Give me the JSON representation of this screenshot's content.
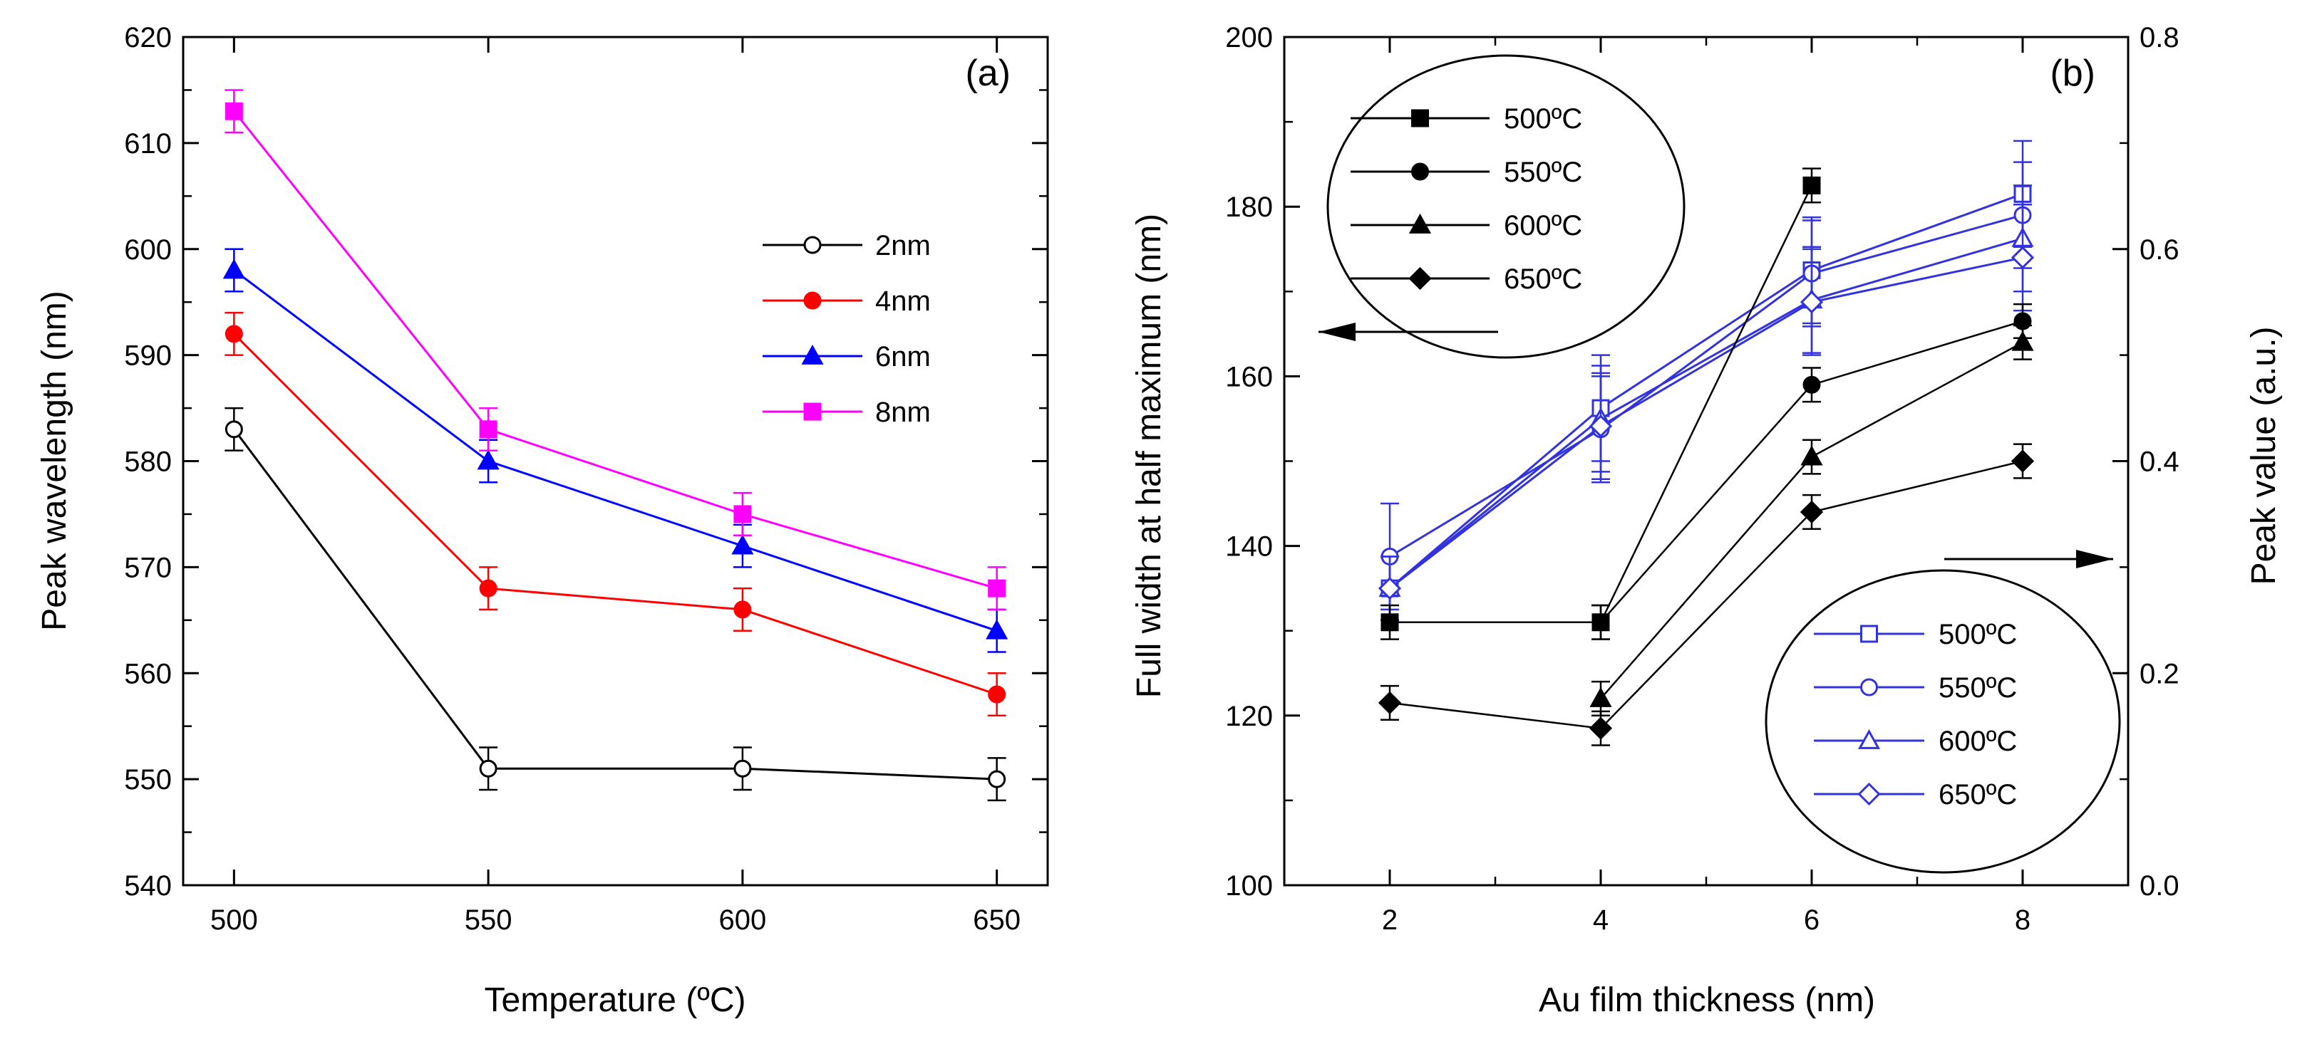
{
  "chart_data": [
    {
      "type": "line",
      "panel_label": "(a)",
      "xlabel": "Temperature (ºC)",
      "ylabel": "Peak wavelength (nm)",
      "xlim": [
        490,
        660
      ],
      "ylim": [
        540,
        620
      ],
      "x_ticks": [
        500,
        550,
        600,
        650
      ],
      "y_ticks": [
        540,
        550,
        560,
        570,
        580,
        590,
        600,
        610,
        620
      ],
      "legend_position": "right",
      "grid": false,
      "series": [
        {
          "name": "2nm",
          "color": "#000000",
          "marker": "circle-open",
          "x": [
            500,
            550,
            600,
            650
          ],
          "values": [
            583,
            551,
            551,
            550
          ],
          "errors": [
            2,
            2,
            2,
            2
          ]
        },
        {
          "name": "4nm",
          "color": "#ff0000",
          "marker": "circle-filled",
          "x": [
            500,
            550,
            600,
            650
          ],
          "values": [
            592,
            568,
            566,
            558
          ],
          "errors": [
            2,
            2,
            2,
            2
          ]
        },
        {
          "name": "6nm",
          "color": "#0000ff",
          "marker": "triangle-filled",
          "x": [
            500,
            550,
            600,
            650
          ],
          "values": [
            598,
            580,
            572,
            564
          ],
          "errors": [
            2,
            2,
            2,
            2
          ]
        },
        {
          "name": "8nm",
          "color": "#ff00ff",
          "marker": "square-filled",
          "x": [
            500,
            550,
            600,
            650
          ],
          "values": [
            613,
            583,
            575,
            568
          ],
          "errors": [
            2,
            2,
            2,
            2
          ]
        }
      ]
    },
    {
      "type": "line",
      "panel_label": "(b)",
      "xlabel": "Au film thickness (nm)",
      "ylabel": "Full width at half maximum (nm)",
      "y2label": "Peak value (a.u.)",
      "xlim": [
        1,
        9
      ],
      "ylim": [
        100,
        200
      ],
      "y2lim": [
        0.0,
        0.8
      ],
      "x_ticks": [
        2,
        4,
        6,
        8
      ],
      "y_ticks": [
        100,
        120,
        140,
        160,
        180,
        200
      ],
      "y2_ticks": [
        "0.0",
        "0.2",
        "0.4",
        "0.6",
        "0.8"
      ],
      "grid": false,
      "fwhm_legend_position": "top-left",
      "peak_legend_position": "bottom-right",
      "fwhm_series": [
        {
          "name": "500ºC",
          "color": "#000000",
          "marker": "square-filled",
          "x": [
            2,
            4,
            6
          ],
          "values": [
            131,
            131,
            182.5
          ],
          "errors": [
            2,
            2,
            2
          ]
        },
        {
          "name": "550ºC",
          "color": "#000000",
          "marker": "circle-filled",
          "x": [
            4,
            6,
            8
          ],
          "values": [
            131,
            159,
            166.5
          ],
          "errors": [
            2,
            2,
            2
          ]
        },
        {
          "name": "600ºC",
          "color": "#000000",
          "marker": "triangle-filled",
          "x": [
            4,
            6,
            8
          ],
          "values": [
            122,
            150.5,
            164
          ],
          "errors": [
            2,
            2,
            2
          ]
        },
        {
          "name": "650ºC",
          "color": "#000000",
          "marker": "diamond-filled",
          "x": [
            2,
            4,
            6,
            8
          ],
          "values": [
            121.5,
            118.5,
            144,
            150
          ],
          "errors": [
            2,
            2,
            2,
            2
          ]
        }
      ],
      "peak_series": [
        {
          "name": "500ºC",
          "color": "#3333dd",
          "marker": "square-open",
          "x": [
            2,
            4,
            6,
            8
          ],
          "values": [
            0.28,
            0.45,
            0.58,
            0.652
          ],
          "errors": [
            0.03,
            0.05,
            0.05,
            0.05
          ]
        },
        {
          "name": "550ºC",
          "color": "#3333dd",
          "marker": "circle-open",
          "x": [
            2,
            4,
            6,
            8
          ],
          "values": [
            0.31,
            0.43,
            0.577,
            0.632
          ],
          "errors": [
            0.05,
            0.05,
            0.05,
            0.05
          ]
        },
        {
          "name": "600ºC",
          "color": "#3333dd",
          "marker": "triangle-open",
          "x": [
            2,
            4,
            6,
            8
          ],
          "values": [
            0.28,
            0.44,
            0.552,
            0.61
          ],
          "errors": [
            0.03,
            0.05,
            0.05,
            0.05
          ]
        },
        {
          "name": "650ºC",
          "color": "#3333dd",
          "marker": "diamond-open",
          "x": [
            2,
            4,
            6,
            8
          ],
          "values": [
            0.28,
            0.433,
            0.55,
            0.592
          ],
          "errors": [
            0.03,
            0.05,
            0.05,
            0.05
          ]
        }
      ]
    }
  ]
}
